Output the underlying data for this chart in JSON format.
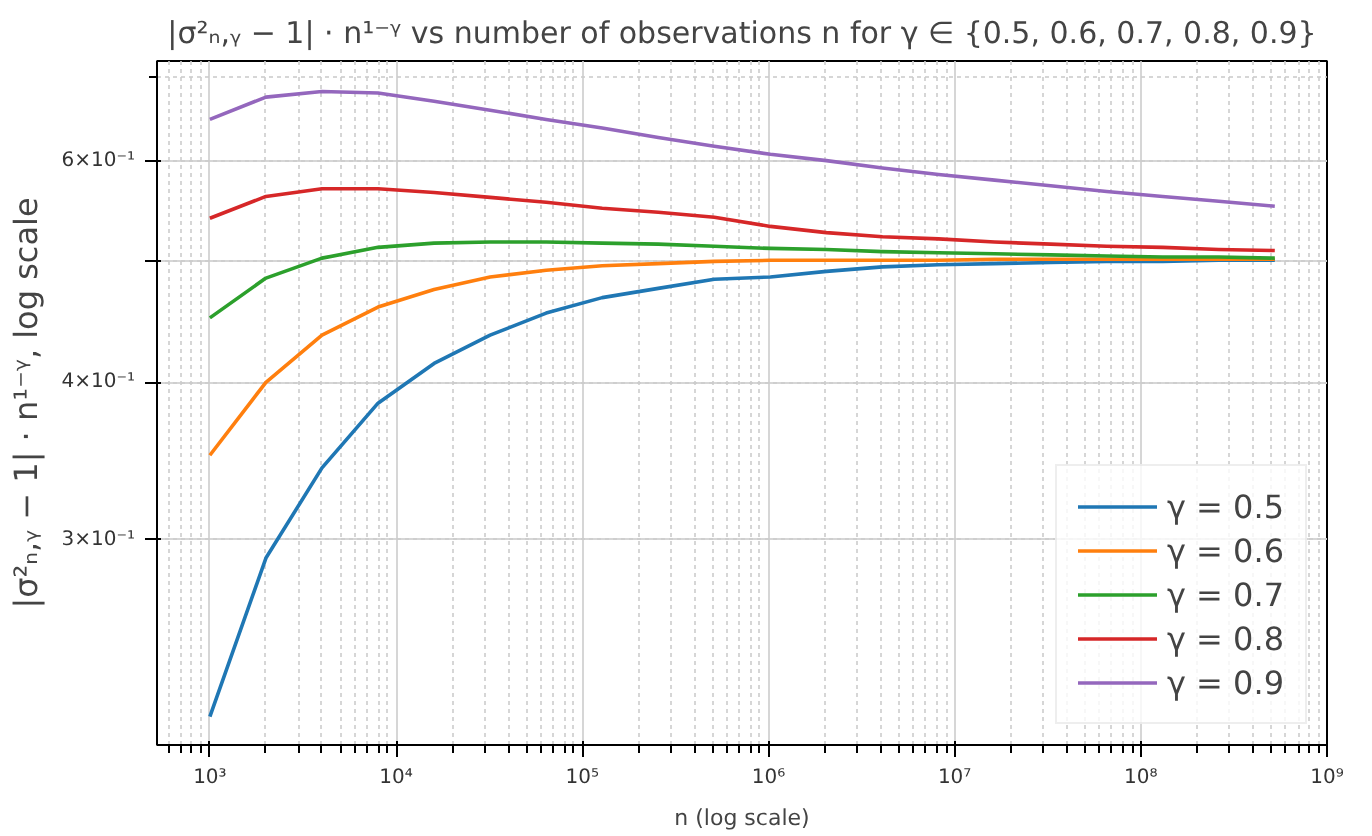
{
  "chart_data": {
    "type": "line",
    "title": "|σ²ₙ,ᵧ − 1| · n¹⁻ᵞ vs number of observations n for γ ∈ {0.5, 0.6, 0.7, 0.8, 0.9}",
    "xlabel": "n (log scale)",
    "ylabel": "|σ²ₙ,ᵧ − 1| · n¹⁻ᵞ, log scale",
    "x": [
      1000,
      2000,
      4000,
      8000,
      16000,
      32000,
      64000,
      128000,
      256000,
      512000,
      1024000,
      2048000,
      4096000,
      8192000,
      16384000,
      32768000,
      65536000,
      131072000,
      262144000,
      524288000
    ],
    "series": [
      {
        "name": "γ = 0.5",
        "color": "#1f77b4",
        "values": [
          0.217,
          0.29,
          0.342,
          0.385,
          0.414,
          0.436,
          0.454,
          0.467,
          0.475,
          0.483,
          0.485,
          0.49,
          0.494,
          0.496,
          0.497,
          0.498,
          0.499,
          0.499,
          0.5,
          0.5
        ]
      },
      {
        "name": "γ = 0.6",
        "color": "#ff7f0e",
        "values": [
          0.35,
          0.4,
          0.436,
          0.459,
          0.474,
          0.485,
          0.491,
          0.495,
          0.497,
          0.499,
          0.5,
          0.5,
          0.5,
          0.5,
          0.501,
          0.501,
          0.501,
          0.501,
          0.501,
          0.501
        ]
      },
      {
        "name": "γ = 0.7",
        "color": "#2ca02c",
        "values": [
          0.45,
          0.484,
          0.502,
          0.512,
          0.516,
          0.517,
          0.517,
          0.516,
          0.515,
          0.513,
          0.511,
          0.51,
          0.508,
          0.507,
          0.506,
          0.505,
          0.504,
          0.503,
          0.503,
          0.502
        ]
      },
      {
        "name": "γ = 0.8",
        "color": "#d62728",
        "values": [
          0.54,
          0.562,
          0.57,
          0.57,
          0.566,
          0.561,
          0.556,
          0.55,
          0.546,
          0.541,
          0.532,
          0.526,
          0.522,
          0.52,
          0.517,
          0.515,
          0.513,
          0.512,
          0.51,
          0.509
        ]
      },
      {
        "name": "γ = 0.9",
        "color": "#9467bd",
        "values": [
          0.647,
          0.674,
          0.681,
          0.679,
          0.669,
          0.658,
          0.647,
          0.637,
          0.626,
          0.616,
          0.607,
          0.6,
          0.592,
          0.585,
          0.579,
          0.573,
          0.567,
          0.562,
          0.557,
          0.552
        ]
      }
    ],
    "log": "xy",
    "xlim": [
      520,
      1000000000
    ],
    "ylim": [
      0.206,
      0.72
    ],
    "xticks": [
      {
        "value": 1000,
        "label": "10³"
      },
      {
        "value": 10000,
        "label": "10⁴"
      },
      {
        "value": 100000,
        "label": "10⁵"
      },
      {
        "value": 1000000,
        "label": "10⁶"
      },
      {
        "value": 10000000,
        "label": "10⁷"
      },
      {
        "value": 100000000,
        "label": "10⁸"
      },
      {
        "value": 1000000000,
        "label": "10⁹"
      }
    ],
    "yticks": [
      {
        "value": 0.3,
        "label": "3×10⁻¹"
      },
      {
        "value": 0.4,
        "label": "4×10⁻¹"
      },
      {
        "value": 0.5,
        "label": null
      },
      {
        "value": 0.6,
        "label": "6×10⁻¹"
      }
    ],
    "grid": true,
    "legend": "bottom right",
    "marker": "none",
    "line_style": "solid"
  }
}
